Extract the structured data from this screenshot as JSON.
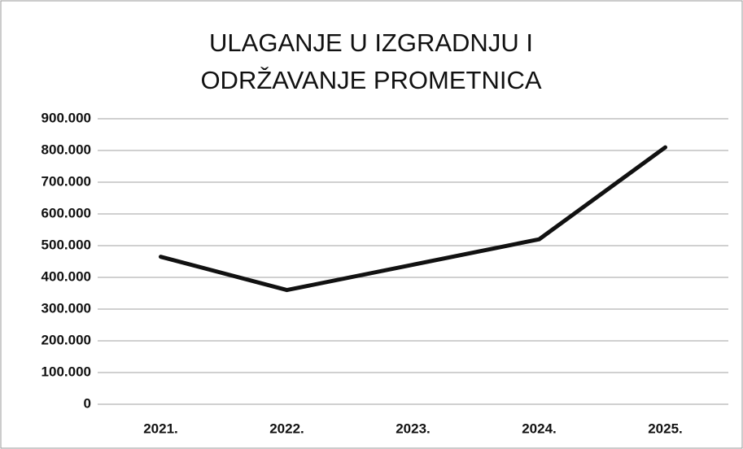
{
  "chart_data": {
    "type": "line",
    "title": "ULAGANJE U IZGRADNJU I ODRŽAVANJE PROMETNICA",
    "categories": [
      "2021.",
      "2022.",
      "2023.",
      "2024.",
      "2025."
    ],
    "values": [
      465000,
      360000,
      440000,
      520000,
      810000
    ],
    "color": "#111111",
    "ylim": [
      0,
      900000
    ],
    "yticks": [
      0,
      {
        "value": 100000,
        "label": "100.000"
      },
      {
        "value": 200000,
        "label": "200.000"
      },
      {
        "value": 300000,
        "label": "300.000"
      },
      {
        "value": 400000,
        "label": "400.000"
      },
      {
        "value": 500000,
        "label": "500.000"
      },
      {
        "value": 600000,
        "label": "600.000"
      },
      {
        "value": 700000,
        "label": "700.000"
      },
      {
        "value": 800000,
        "label": "800.000"
      },
      {
        "value": 900000,
        "label": "900.000"
      }
    ],
    "grid": true
  }
}
